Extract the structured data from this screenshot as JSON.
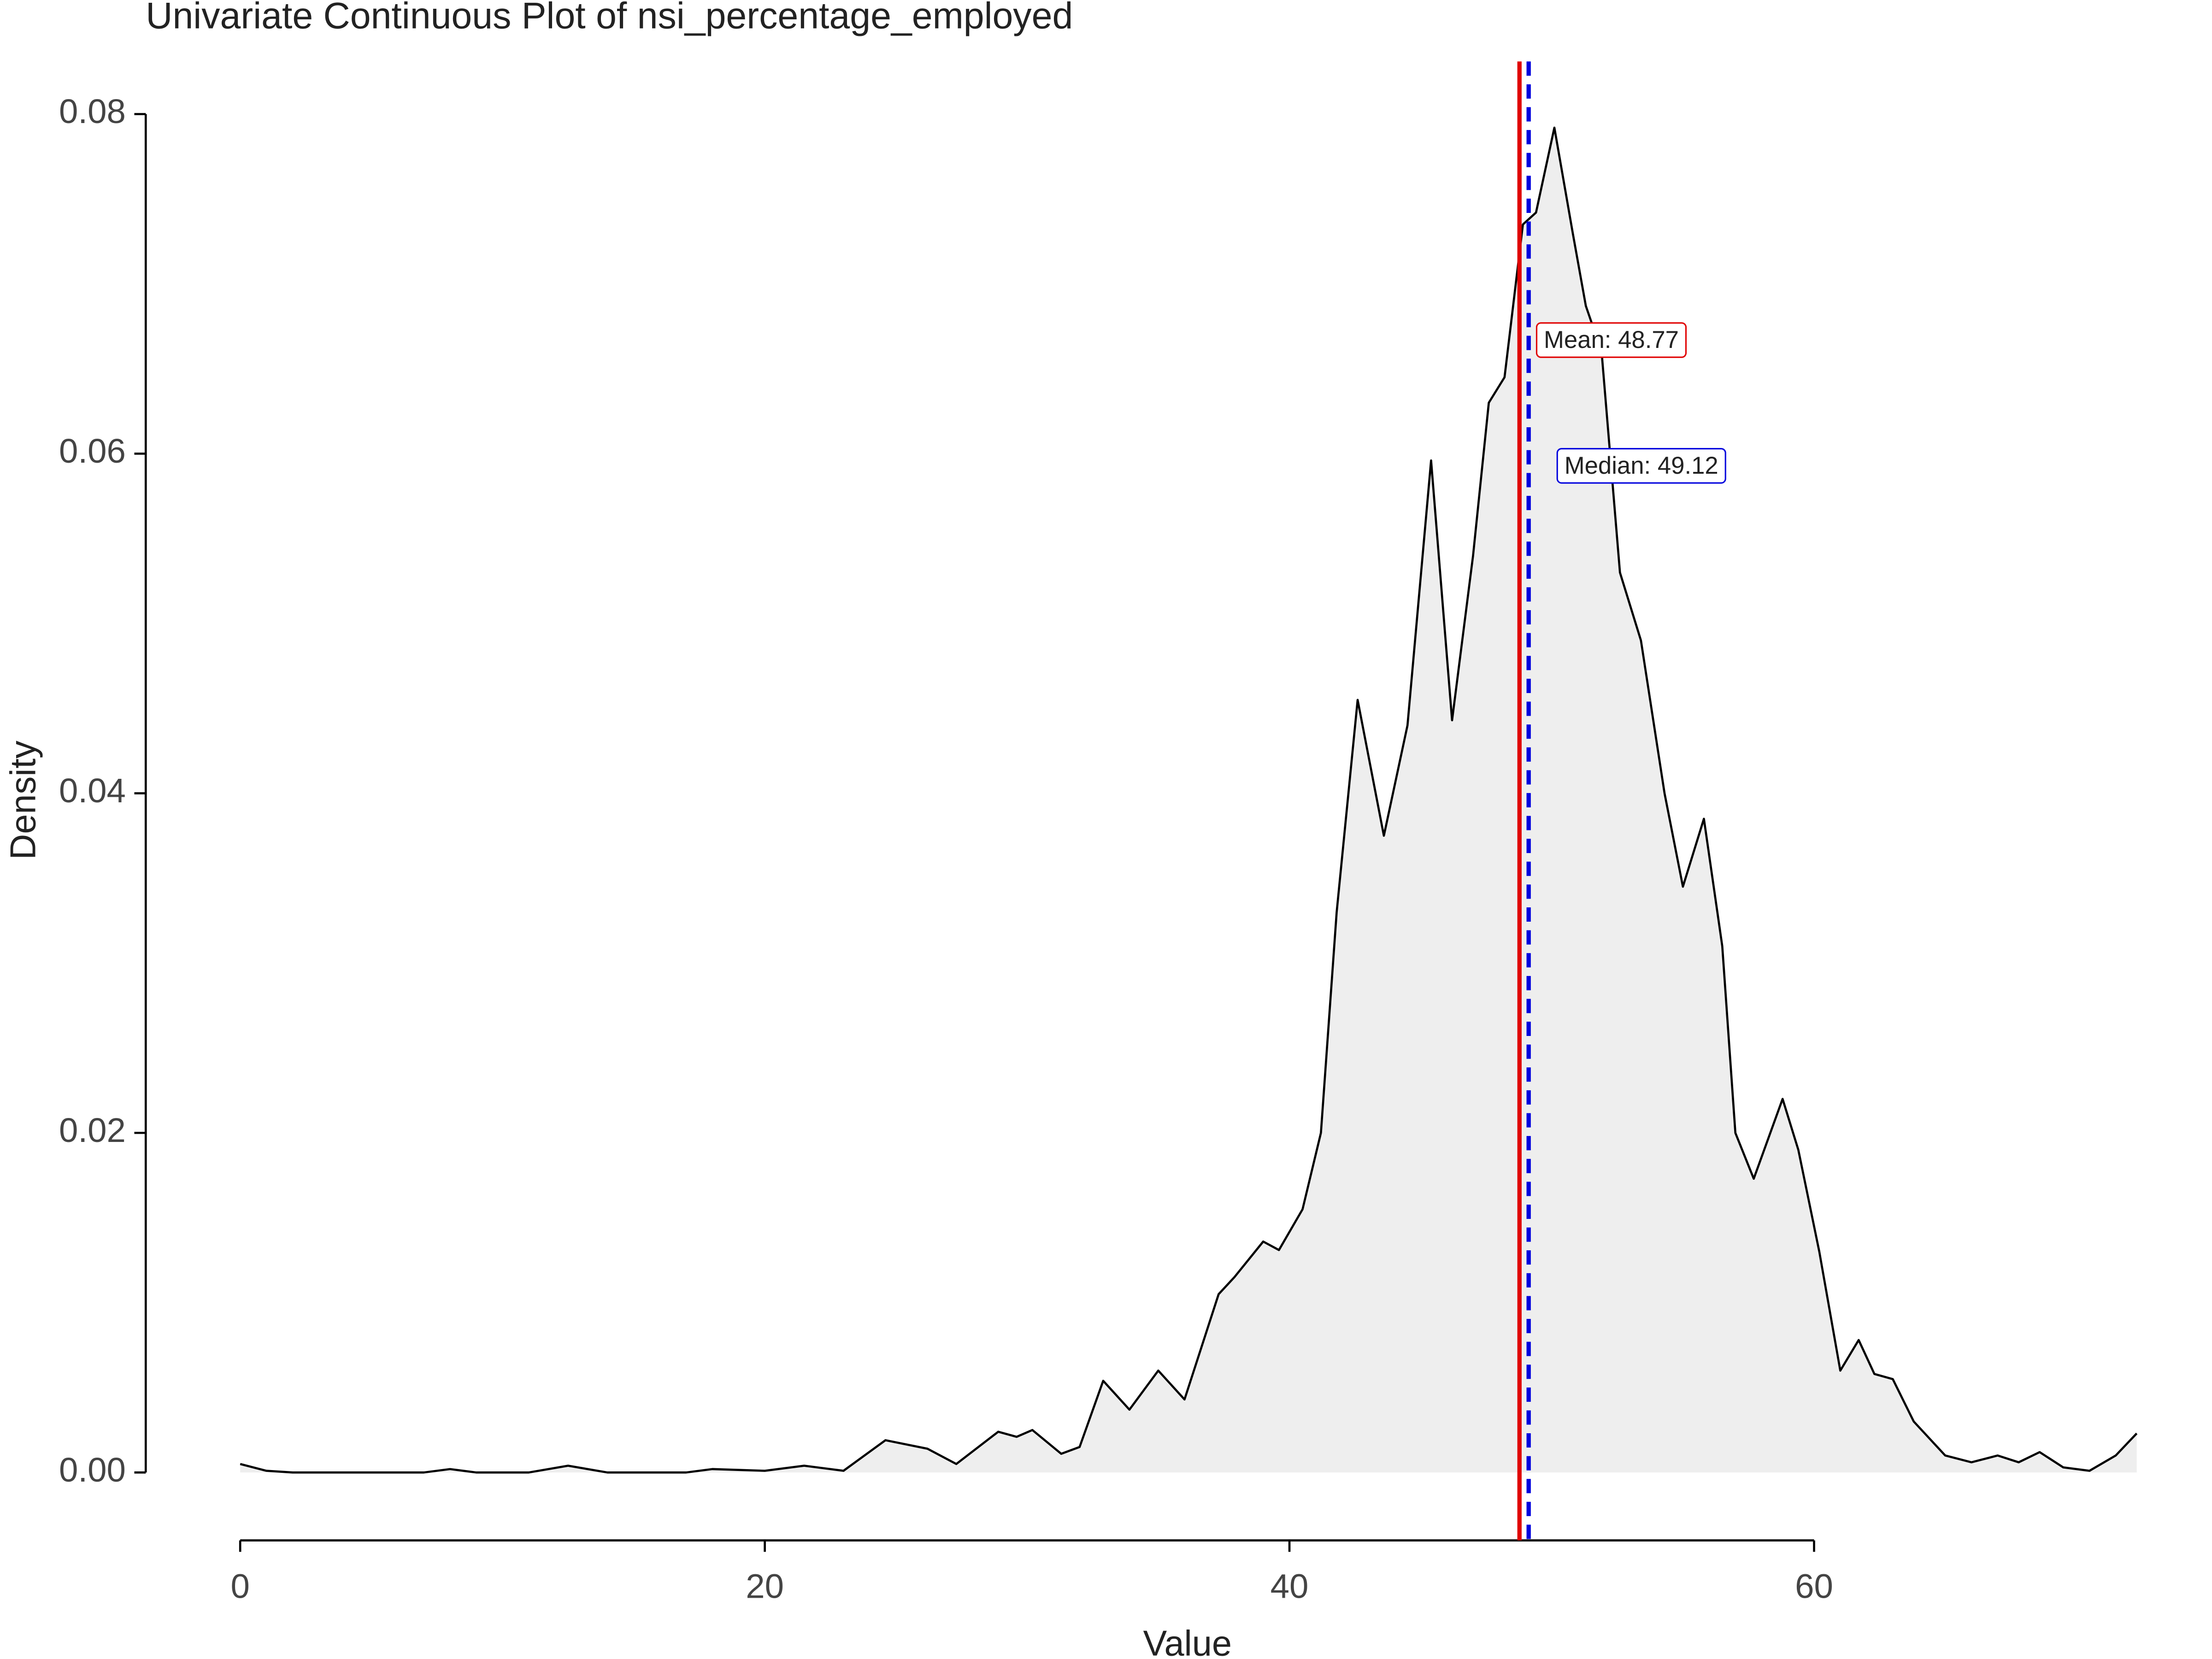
{
  "chart_data": {
    "type": "density",
    "title": "Univariate Continuous Plot of nsi_percentage_employed",
    "x_label": "Value",
    "y_label": "Density",
    "x": [
      0,
      1,
      2,
      3,
      4,
      5,
      6,
      7,
      8,
      9,
      10,
      11,
      12.5,
      14,
      15,
      16,
      17,
      18,
      20,
      21.5,
      23,
      24.6,
      26.2,
      27.3,
      28.9,
      29.6,
      30.2,
      31.3,
      32.0,
      32.9,
      33.9,
      35.0,
      36.0,
      37.3,
      37.9,
      39.0,
      39.6,
      40.5,
      41.2,
      41.8,
      42.6,
      43.6,
      44.5,
      45.4,
      46.2,
      47.0,
      47.6,
      48.2,
      48.9,
      49.4,
      50.1,
      50.8,
      51.3,
      51.9,
      52.6,
      53.4,
      54.3,
      55.0,
      55.8,
      56.5,
      57.0,
      57.7,
      58.8,
      59.4,
      60.2,
      61.0,
      61.7,
      62.3,
      63.0,
      63.8,
      65.0,
      66.0,
      67.0,
      67.8,
      68.6,
      69.5,
      70.5,
      71.5,
      72.3
    ],
    "values": [
      0.0005,
      0.0001,
      0,
      0,
      0,
      0,
      0,
      0,
      0.0002,
      0,
      0,
      0,
      0.0004,
      0,
      0,
      0,
      0,
      0.0002,
      0.0001,
      0.0004,
      0.0001,
      0.0019,
      0.0014,
      0.0005,
      0.0024,
      0.0021,
      0.0025,
      0.0011,
      0.0015,
      0.0054,
      0.0037,
      0.006,
      0.0043,
      0.0105,
      0.0115,
      0.0136,
      0.0131,
      0.0155,
      0.02,
      0.033,
      0.0455,
      0.0375,
      0.044,
      0.0596,
      0.0443,
      0.054,
      0.063,
      0.0645,
      0.0735,
      0.0742,
      0.0792,
      0.073,
      0.0687,
      0.066,
      0.053,
      0.049,
      0.04,
      0.0345,
      0.0385,
      0.031,
      0.02,
      0.0173,
      0.022,
      0.019,
      0.013,
      0.006,
      0.0078,
      0.0058,
      0.0055,
      0.003,
      0.001,
      0.0006,
      0.001,
      0.0006,
      0.0012,
      0.0003,
      0.0001,
      0.001,
      0.0023
    ],
    "color": "#000000",
    "fill": "#eeeeee",
    "xlim": [
      -3.6,
      73.1
    ],
    "ylim": [
      -0.004,
      0.0831
    ],
    "xticks": [
      0,
      20,
      40,
      60
    ],
    "yticks": [
      {
        "value": 0,
        "label": "0.00"
      },
      {
        "value": 0.02,
        "label": "0.02"
      },
      {
        "value": 0.04,
        "label": "0.04"
      },
      {
        "value": 0.06,
        "label": "0.06"
      },
      {
        "value": 0.08,
        "label": "0.08"
      }
    ],
    "reference_lines": [
      {
        "label": "Mean: 48.77",
        "value": 48.77,
        "color": "#e00000",
        "dashed": false
      },
      {
        "label": "Median: 49.12",
        "value": 49.12,
        "color": "#0000dd",
        "dashed": true
      }
    ]
  }
}
